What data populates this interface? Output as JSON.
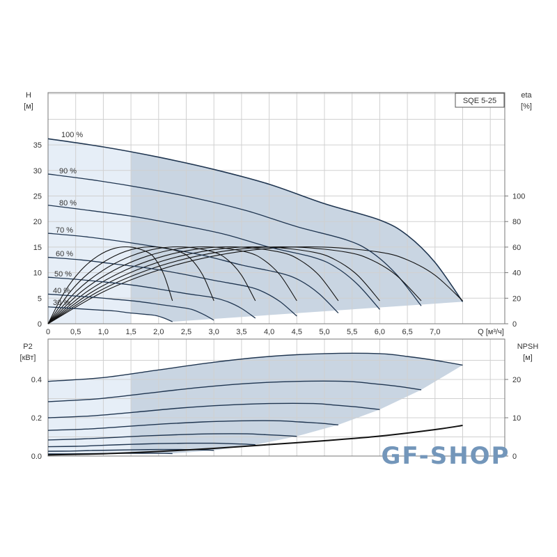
{
  "chart_data": [
    {
      "type": "line",
      "model_label": "SQE 5-25",
      "xlabel": "Q [м³/ч]",
      "ylabel_left": [
        "H",
        "[м]"
      ],
      "ylabel_right": [
        "eta",
        "[%]"
      ],
      "xlim": [
        0,
        8.25
      ],
      "ylim_left": [
        0,
        45
      ],
      "ylim_right": [
        0,
        180
      ],
      "x_ticks": [
        "0",
        "0,5",
        "1,0",
        "1,5",
        "2,0",
        "2,5",
        "3,0",
        "3,5",
        "4,0",
        "4,5",
        "5,0",
        "5,5",
        "6,0",
        "6,5",
        "7,0"
      ],
      "y_ticks_left": [
        "0",
        "5",
        "10",
        "15",
        "20",
        "25",
        "30",
        "35"
      ],
      "y_ticks_right": [
        "0",
        "20",
        "40",
        "60",
        "80",
        "100"
      ],
      "grid": true,
      "series": [
        {
          "name": "100 %",
          "q": [
            0,
            1,
            2,
            3,
            4,
            5,
            6,
            6.5,
            7,
            7.5
          ],
          "h": [
            36.2,
            34.6,
            32.6,
            30.2,
            27.3,
            23.5,
            20.3,
            17.3,
            12.0,
            4.3
          ],
          "eta": [
            0,
            25,
            42,
            53,
            59,
            60,
            56,
            50,
            38,
            18
          ]
        },
        {
          "name": "90 %",
          "q": [
            0,
            0.9,
            1.8,
            2.7,
            3.6,
            4.5,
            5.4,
            5.85,
            6.3,
            6.75
          ],
          "h": [
            29.3,
            28.0,
            26.4,
            24.5,
            22.1,
            19.0,
            16.4,
            14.0,
            9.7,
            3.5
          ],
          "eta": [
            0,
            25,
            42,
            53,
            59,
            60,
            56,
            50,
            38,
            18
          ]
        },
        {
          "name": "80 %",
          "q": [
            0,
            0.8,
            1.6,
            2.4,
            3.2,
            4.0,
            4.8,
            5.2,
            5.6,
            6.0
          ],
          "h": [
            23.2,
            22.1,
            20.9,
            19.3,
            17.5,
            15.0,
            13.0,
            11.1,
            7.7,
            2.8
          ],
          "eta": [
            0,
            25,
            42,
            53,
            59,
            60,
            56,
            50,
            38,
            18
          ]
        },
        {
          "name": "70 %",
          "q": [
            0,
            0.7,
            1.4,
            2.1,
            2.8,
            3.5,
            4.2,
            4.55,
            4.9,
            5.25
          ],
          "h": [
            17.7,
            17.0,
            16.0,
            14.8,
            13.4,
            11.5,
            9.9,
            8.5,
            5.9,
            2.1
          ],
          "eta": [
            0,
            25,
            42,
            53,
            59,
            60,
            56,
            50,
            38,
            18
          ]
        },
        {
          "name": "60 %",
          "q": [
            0,
            0.6,
            1.2,
            1.8,
            2.4,
            3.0,
            3.6,
            3.9,
            4.2,
            4.5
          ],
          "h": [
            13.0,
            12.5,
            11.7,
            10.9,
            9.8,
            8.5,
            7.3,
            6.2,
            4.3,
            1.5
          ],
          "eta": [
            0,
            25,
            42,
            53,
            59,
            60,
            56,
            50,
            38,
            18
          ]
        },
        {
          "name": "50 %",
          "q": [
            0,
            0.5,
            1.0,
            1.5,
            2.0,
            2.5,
            3.0,
            3.25,
            3.5,
            3.75
          ],
          "h": [
            9.1,
            8.7,
            8.2,
            7.6,
            6.8,
            5.9,
            5.1,
            4.3,
            3.0,
            1.1
          ],
          "eta": [
            0,
            25,
            42,
            53,
            59,
            60,
            56,
            50,
            38,
            18
          ]
        },
        {
          "name": "40 %",
          "q": [
            0,
            0.4,
            0.8,
            1.2,
            1.6,
            2.0,
            2.4,
            2.6,
            2.8,
            3.0
          ],
          "h": [
            5.8,
            5.5,
            5.2,
            4.8,
            4.4,
            3.8,
            3.2,
            2.8,
            1.9,
            0.7
          ],
          "eta": [
            0,
            25,
            42,
            53,
            59,
            60,
            56,
            50,
            38,
            18
          ]
        },
        {
          "name": "30 %",
          "q": [
            0,
            0.3,
            0.6,
            0.9,
            1.2,
            1.5,
            1.8,
            1.95,
            2.1,
            2.25
          ],
          "h": [
            3.3,
            3.1,
            2.9,
            2.7,
            2.5,
            2.1,
            1.8,
            1.6,
            1.1,
            0.4
          ],
          "eta": [
            0,
            25,
            42,
            53,
            59,
            60,
            56,
            50,
            38,
            18
          ]
        }
      ]
    },
    {
      "type": "line",
      "ylabel_left": [
        "P2",
        "[кВт]"
      ],
      "ylabel_right": [
        "NPSH",
        "[м]"
      ],
      "xlim": [
        0,
        8.25
      ],
      "ylim_left": [
        0,
        0.61
      ],
      "ylim_right": [
        0,
        30.5
      ],
      "y_ticks_left": [
        "0.0",
        "0.2",
        "0.4"
      ],
      "y_ticks_right": [
        "0",
        "10",
        "20"
      ],
      "grid": true,
      "p2_series": [
        {
          "speed": "100 %",
          "q": [
            0,
            1,
            2,
            3,
            4,
            5,
            6,
            6.5,
            7,
            7.5
          ],
          "p2": [
            0.39,
            0.41,
            0.45,
            0.49,
            0.52,
            0.535,
            0.535,
            0.52,
            0.5,
            0.475
          ]
        },
        {
          "speed": "90 %",
          "q": [
            0,
            0.9,
            1.8,
            2.7,
            3.6,
            4.5,
            5.4,
            5.85,
            6.3,
            6.75
          ],
          "p2": [
            0.284,
            0.299,
            0.328,
            0.357,
            0.379,
            0.39,
            0.39,
            0.379,
            0.365,
            0.346
          ]
        },
        {
          "speed": "80 %",
          "q": [
            0,
            0.8,
            1.6,
            2.4,
            3.2,
            4.0,
            4.8,
            5.2,
            5.6,
            6.0
          ],
          "p2": [
            0.2,
            0.21,
            0.23,
            0.251,
            0.266,
            0.274,
            0.274,
            0.266,
            0.256,
            0.243
          ]
        },
        {
          "speed": "70 %",
          "q": [
            0,
            0.7,
            1.4,
            2.1,
            2.8,
            3.5,
            4.2,
            4.55,
            4.9,
            5.25
          ],
          "p2": [
            0.134,
            0.141,
            0.154,
            0.168,
            0.178,
            0.184,
            0.184,
            0.178,
            0.172,
            0.163
          ]
        },
        {
          "speed": "60 %",
          "q": [
            0,
            0.6,
            1.2,
            1.8,
            2.4,
            3.0,
            3.6,
            3.9,
            4.2,
            4.5
          ],
          "p2": [
            0.084,
            0.089,
            0.097,
            0.106,
            0.112,
            0.116,
            0.116,
            0.112,
            0.108,
            0.103
          ]
        },
        {
          "speed": "50 %",
          "q": [
            0,
            0.5,
            1.0,
            1.5,
            2.0,
            2.5,
            3.0,
            3.25,
            3.5,
            3.75
          ],
          "p2": [
            0.049,
            0.051,
            0.056,
            0.061,
            0.065,
            0.067,
            0.067,
            0.065,
            0.063,
            0.059
          ]
        },
        {
          "speed": "40 %",
          "q": [
            0,
            0.4,
            0.8,
            1.2,
            1.6,
            2.0,
            2.4,
            2.6,
            2.8,
            3.0
          ],
          "p2": [
            0.025,
            0.026,
            0.029,
            0.031,
            0.033,
            0.034,
            0.034,
            0.033,
            0.032,
            0.03
          ]
        },
        {
          "speed": "30 %",
          "q": [
            0,
            0.3,
            0.6,
            0.9,
            1.2,
            1.5,
            1.8,
            1.95,
            2.1,
            2.25
          ],
          "p2": [
            0.011,
            0.011,
            0.012,
            0.013,
            0.014,
            0.014,
            0.014,
            0.014,
            0.014,
            0.013
          ]
        }
      ],
      "npsh_series": {
        "q": [
          0,
          1,
          2,
          3,
          4,
          5,
          6,
          7,
          7.5
        ],
        "npsh": [
          0.3,
          0.6,
          1.2,
          2.0,
          3.0,
          4.0,
          5.2,
          6.9,
          8.0
        ]
      }
    }
  ],
  "watermark": "GF-SHOP",
  "colors": {
    "fill": "#c9d5e2",
    "fill_light": "#e6eef7",
    "curve": "#1f3550",
    "grid": "#d0d0d0",
    "watermark": "#7396ba"
  }
}
